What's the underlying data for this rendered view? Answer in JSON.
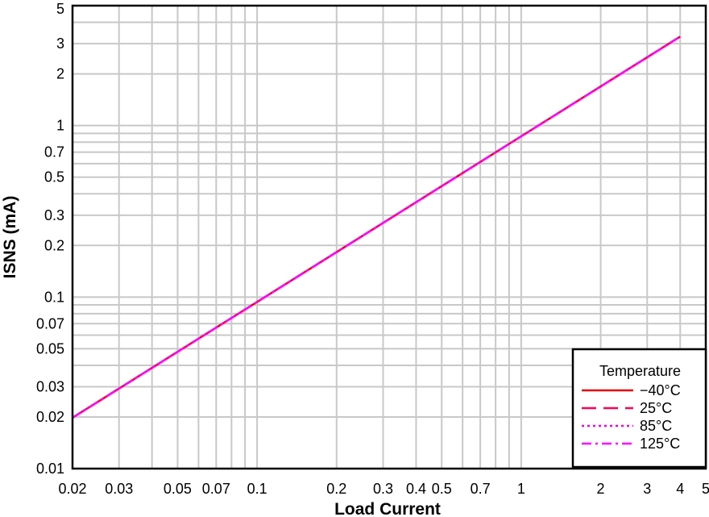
{
  "chart_data": {
    "type": "line",
    "xlabel": "Load Current",
    "ylabel": "ISNS (mA)",
    "xscale": "log",
    "yscale": "log",
    "xlim": [
      0.02,
      5
    ],
    "ylim": [
      0.01,
      5
    ],
    "grid": true,
    "x_ticks": [
      0.02,
      0.03,
      0.05,
      0.07,
      0.1,
      0.2,
      0.3,
      0.4,
      0.5,
      0.7,
      1,
      2,
      3,
      4,
      5
    ],
    "x_tick_labels": [
      "0.02",
      "0.03",
      "0.05",
      "0.07",
      "0.1",
      "0.2",
      "0.3",
      "0.4",
      "0.5",
      "0.7",
      "1",
      "2",
      "3",
      "4",
      "5"
    ],
    "y_ticks": [
      0.01,
      0.02,
      0.03,
      0.05,
      0.07,
      0.1,
      0.2,
      0.3,
      0.5,
      0.7,
      1,
      2,
      3,
      5
    ],
    "y_tick_labels": [
      "0.01",
      "0.02",
      "0.03",
      "0.05",
      "0.07",
      "0.1",
      "0.2",
      "0.3",
      "0.5",
      "0.7",
      "1",
      "2",
      "3",
      "5"
    ],
    "legend": {
      "title": "Temperature",
      "placement": "bottom-right"
    },
    "series": [
      {
        "name": "−40°C",
        "color": "#e60000",
        "dash": "solid",
        "x": [
          0.02,
          4
        ],
        "y": [
          0.0198,
          3.3
        ]
      },
      {
        "name": "25°C",
        "color": "#ff0055",
        "dash": "long-dash",
        "x": [
          0.02,
          4
        ],
        "y": [
          0.0198,
          3.3
        ]
      },
      {
        "name": "85°C",
        "color": "#ee00cc",
        "dash": "dotted",
        "x": [
          0.02,
          4
        ],
        "y": [
          0.0198,
          3.3
        ]
      },
      {
        "name": "125°C",
        "color": "#ff00ff",
        "dash": "dash-dot",
        "x": [
          0.02,
          4
        ],
        "y": [
          0.0198,
          3.3
        ]
      }
    ]
  }
}
